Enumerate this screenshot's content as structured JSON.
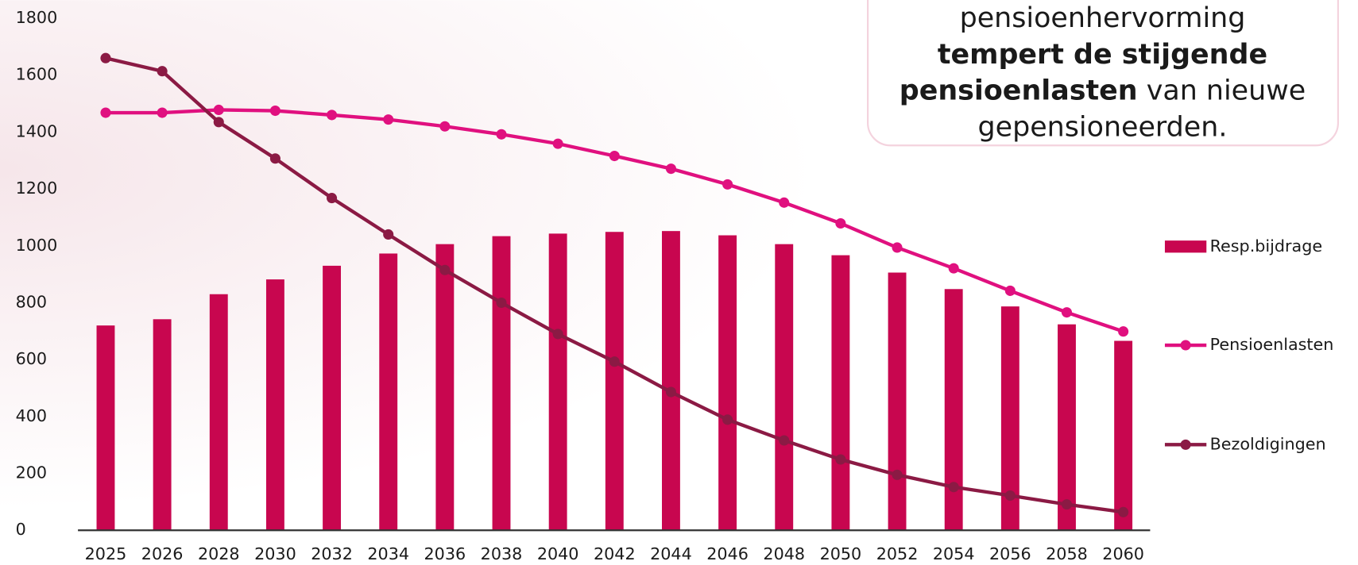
{
  "chart_data": {
    "type": "bar",
    "categories": [
      "2025",
      "2026",
      "2028",
      "2030",
      "2032",
      "2034",
      "2036",
      "2038",
      "2040",
      "2042",
      "2044",
      "2046",
      "2048",
      "2050",
      "2052",
      "2054",
      "2056",
      "2058",
      "2060"
    ],
    "series": [
      {
        "name": "Resp.bijdrage",
        "type": "bar",
        "color": "#c8064f",
        "values": [
          720,
          742,
          830,
          882,
          930,
          973,
          1006,
          1034,
          1043,
          1049,
          1052,
          1037,
          1006,
          967,
          906,
          848,
          787,
          724,
          666
        ]
      },
      {
        "name": "Pensioenlasten",
        "type": "line",
        "color": "#e0107f",
        "values": [
          1468,
          1468,
          1478,
          1475,
          1460,
          1444,
          1420,
          1392,
          1359,
          1316,
          1271,
          1216,
          1152,
          1079,
          994,
          921,
          842,
          766,
          699
        ]
      },
      {
        "name": "Bezoldigingen",
        "type": "line",
        "color": "#8b1a44",
        "values": [
          1660,
          1614,
          1435,
          1307,
          1168,
          1040,
          915,
          800,
          690,
          593,
          486,
          389,
          316,
          249,
          195,
          152,
          122,
          91,
          64
        ]
      }
    ],
    "ylim": [
      0,
      1800
    ],
    "yticks": [
      0,
      200,
      400,
      600,
      800,
      1000,
      1200,
      1400,
      1600,
      1800
    ],
    "grid": false,
    "legend": "right",
    "annotation": [
      "pensioenhervorming",
      "tempert de stijgende",
      "pensioenlasten",
      "van nieuwe",
      "gepensioneerden."
    ]
  }
}
